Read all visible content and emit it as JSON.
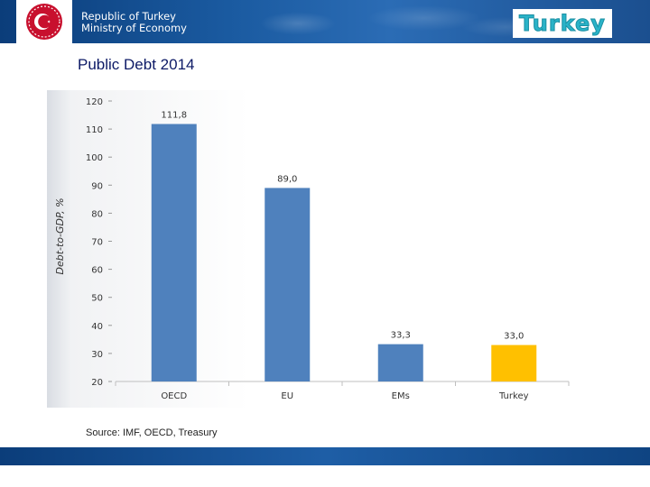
{
  "header": {
    "line1": "Republic of Turkey",
    "line2": "Ministry of Economy",
    "brand": "Turkey",
    "logo_icon": "crescent-star-emblem-icon"
  },
  "colors": {
    "header_blue": "#1a5aa0",
    "bar_blue": "#4f81bd",
    "bar_highlight": "#ffc000",
    "title_navy": "#0d1a66"
  },
  "page_title": "Public Debt 2014",
  "source": "Source: IMF, OECD, Treasury",
  "chart_data": {
    "type": "bar",
    "title": "",
    "xlabel": "",
    "ylabel": "Debt-to-GDP, %",
    "ylim": [
      20,
      120
    ],
    "yticks": [
      20,
      30,
      40,
      50,
      60,
      70,
      80,
      90,
      100,
      110,
      120
    ],
    "categories": [
      "OECD",
      "EU",
      "EMs",
      "Turkey"
    ],
    "values": [
      111.8,
      89.0,
      33.3,
      33.0
    ],
    "value_labels": [
      "111,8",
      "89,0",
      "33,3",
      "33,0"
    ],
    "highlight_index": 3,
    "grid": false
  }
}
